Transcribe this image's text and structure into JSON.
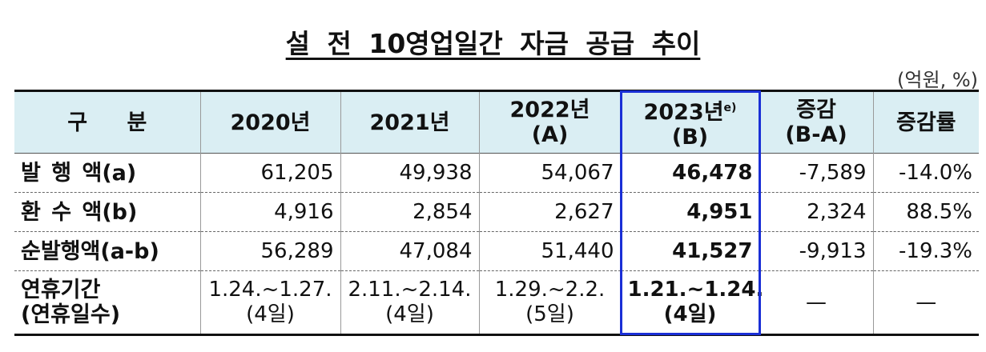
{
  "title": "설 전 10영업일간 자금 공급 추이",
  "unit": "(억원, %)",
  "table": {
    "header": [
      {
        "lines": [
          "구 분"
        ]
      },
      {
        "lines": [
          "2020년"
        ]
      },
      {
        "lines": [
          "2021년"
        ]
      },
      {
        "lines": [
          "2022년",
          "(A)"
        ]
      },
      {
        "lines": [
          "2023년",
          "(B)"
        ],
        "note": "e)"
      },
      {
        "lines": [
          "증감",
          "(B-A)"
        ]
      },
      {
        "lines": [
          "증감률"
        ]
      }
    ],
    "rows": [
      {
        "label": [
          "발 행 액(a)"
        ],
        "cells": [
          [
            "61,205"
          ],
          [
            "49,938"
          ],
          [
            "54,067"
          ],
          [
            "46,478"
          ],
          [
            "-7,589"
          ],
          [
            "-14.0%"
          ]
        ]
      },
      {
        "label": [
          "환 수 액(b)"
        ],
        "cells": [
          [
            "4,916"
          ],
          [
            "2,854"
          ],
          [
            "2,627"
          ],
          [
            "4,951"
          ],
          [
            "2,324"
          ],
          [
            "88.5%"
          ]
        ]
      },
      {
        "label": [
          "순발행액(a-b)"
        ],
        "cells": [
          [
            "56,289"
          ],
          [
            "47,084"
          ],
          [
            "51,440"
          ],
          [
            "41,527"
          ],
          [
            "-9,913"
          ],
          [
            "-19.3%"
          ]
        ]
      },
      {
        "label": [
          "연휴기간",
          "(연휴일수)"
        ],
        "cells": [
          [
            "1.24.~1.27.",
            "(4일)"
          ],
          [
            "2.11.~2.14.",
            "(4일)"
          ],
          [
            "1.29.~2.2.",
            "(5일)"
          ],
          [
            "1.21.~1.24.",
            "(4일)"
          ],
          [
            "—"
          ],
          [
            "—"
          ]
        ]
      }
    ]
  }
}
